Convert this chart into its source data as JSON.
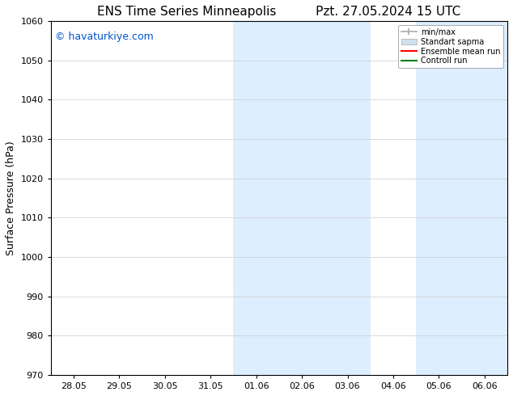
{
  "title_left": "ENS Time Series Minneapolis",
  "title_right": "Pzt. 27.05.2024 15 UTC",
  "ylabel": "Surface Pressure (hPa)",
  "ylim": [
    970,
    1060
  ],
  "yticks": [
    970,
    980,
    990,
    1000,
    1010,
    1020,
    1030,
    1040,
    1050,
    1060
  ],
  "xtick_labels": [
    "28.05",
    "29.05",
    "30.05",
    "31.05",
    "01.06",
    "02.06",
    "03.06",
    "04.06",
    "05.06",
    "06.06"
  ],
  "xtick_positions": [
    0,
    1,
    2,
    3,
    4,
    5,
    6,
    7,
    8,
    9
  ],
  "xlim": [
    -0.5,
    9.5
  ],
  "shaded_regions": [
    {
      "xmin": 3.5,
      "xmax": 6.5,
      "color": "#ddeeff"
    },
    {
      "xmin": 7.5,
      "xmax": 9.5,
      "color": "#ddeeff"
    }
  ],
  "watermark_text": "© havaturkiye.com",
  "watermark_color": "#0055cc",
  "legend_entries": [
    {
      "label": "min/max",
      "color": "#aaaaaa",
      "type": "errorbar"
    },
    {
      "label": "Standart sapma",
      "color": "#cce0f0",
      "type": "fill"
    },
    {
      "label": "Ensemble mean run",
      "color": "red",
      "type": "line"
    },
    {
      "label": "Controll run",
      "color": "green",
      "type": "line"
    }
  ],
  "bg_color": "#ffffff",
  "grid_color": "#cccccc",
  "spine_color": "#000000",
  "title_fontsize": 11,
  "watermark_fontsize": 9,
  "ylabel_fontsize": 9,
  "tick_fontsize": 8,
  "legend_fontsize": 7
}
